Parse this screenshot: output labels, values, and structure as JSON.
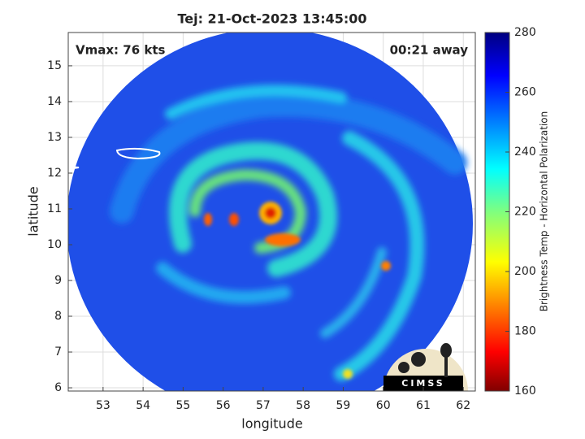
{
  "chart_data": {
    "type": "map",
    "title": "Tej: 21-Oct-2023 13:45:00",
    "annotation_left": "Vmax: 76 kts",
    "annotation_right": "00:21 away",
    "xlabel": "longitude",
    "ylabel": "latitude",
    "xlim": [
      52.13,
      62.3
    ],
    "ylim": [
      5.91,
      15.93
    ],
    "xticks": [
      53,
      54,
      55,
      56,
      57,
      58,
      59,
      60,
      61,
      62
    ],
    "yticks": [
      6,
      7,
      8,
      9,
      10,
      11,
      12,
      13,
      14,
      15
    ],
    "grid": true,
    "colorbar": {
      "label": "Brightness Temp - Horizontal Polarization",
      "lim": [
        160,
        280
      ],
      "ticks": [
        160,
        180,
        200,
        220,
        240,
        260,
        280
      ]
    },
    "logo": "CIMSS"
  }
}
